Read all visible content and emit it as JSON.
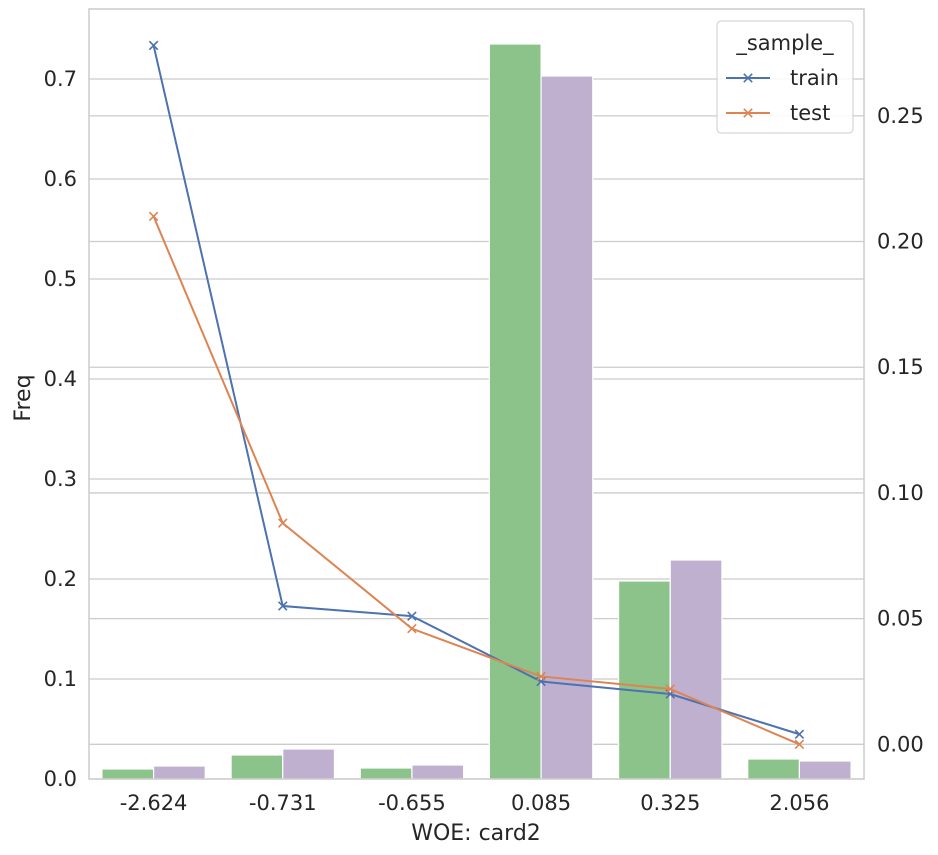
{
  "chart_data": {
    "type": "bar",
    "xlabel": "WOE: card2",
    "ylabel": "Freq",
    "categories": [
      "-2.624",
      "-0.731",
      "-0.655",
      "0.085",
      "0.325",
      "2.056"
    ],
    "bar_series": [
      {
        "values": [
          0.01,
          0.024,
          0.011,
          0.735,
          0.198,
          0.02
        ],
        "color": "#8bc38a"
      },
      {
        "values": [
          0.013,
          0.03,
          0.014,
          0.703,
          0.219,
          0.018
        ],
        "color": "#bfb0d0"
      }
    ],
    "line_series": [
      {
        "name": "train",
        "values": [
          0.278,
          0.055,
          0.051,
          0.025,
          0.02,
          0.004
        ],
        "color": "#4c72b0"
      },
      {
        "name": "test",
        "values": [
          0.21,
          0.088,
          0.046,
          0.027,
          0.022,
          0.0
        ],
        "color": "#dd8452"
      }
    ],
    "left_axis": {
      "ylim": [
        0,
        0.77
      ],
      "ticks": [
        "0.0",
        "0.1",
        "0.2",
        "0.3",
        "0.4",
        "0.5",
        "0.6",
        "0.7"
      ]
    },
    "right_axis": {
      "ylim": [
        -0.0138,
        0.2925
      ],
      "ticks": [
        "0.00",
        "0.05",
        "0.10",
        "0.15",
        "0.20",
        "0.25"
      ]
    },
    "legend": {
      "title": "_sample_",
      "placement": "top-right"
    },
    "grid": true
  }
}
